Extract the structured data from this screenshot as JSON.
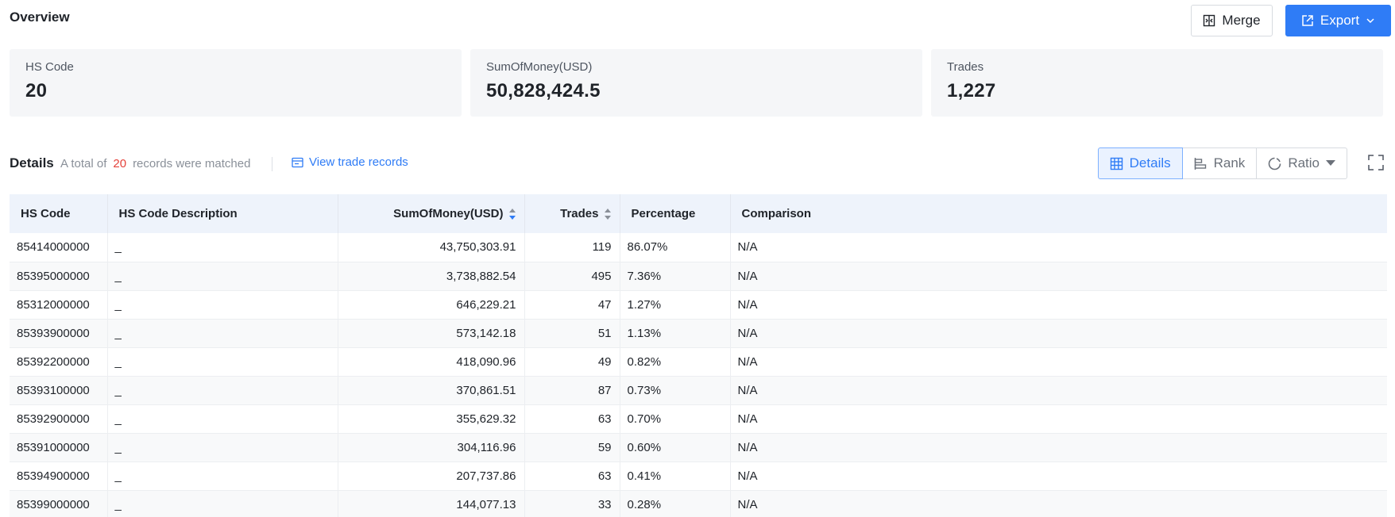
{
  "header": {
    "title": "Overview",
    "merge_label": "Merge",
    "export_label": "Export"
  },
  "cards": [
    {
      "label": "HS Code",
      "value": "20"
    },
    {
      "label": "SumOfMoney(USD)",
      "value": "50,828,424.5"
    },
    {
      "label": "Trades",
      "value": "1,227"
    }
  ],
  "details": {
    "title": "Details",
    "prefix": "A total of",
    "count": "20",
    "suffix": "records were matched",
    "view_link": "View trade records",
    "switch": {
      "details": "Details",
      "rank": "Rank",
      "ratio": "Ratio"
    }
  },
  "table": {
    "columns": [
      "HS Code",
      "HS Code Description",
      "SumOfMoney(USD)",
      "Trades",
      "Percentage",
      "Comparison"
    ],
    "rows": [
      [
        "85414000000",
        "_",
        "43,750,303.91",
        "119",
        "86.07%",
        "N/A"
      ],
      [
        "85395000000",
        "_",
        "3,738,882.54",
        "495",
        "7.36%",
        "N/A"
      ],
      [
        "85312000000",
        "_",
        "646,229.21",
        "47",
        "1.27%",
        "N/A"
      ],
      [
        "85393900000",
        "_",
        "573,142.18",
        "51",
        "1.13%",
        "N/A"
      ],
      [
        "85392200000",
        "_",
        "418,090.96",
        "49",
        "0.82%",
        "N/A"
      ],
      [
        "85393100000",
        "_",
        "370,861.51",
        "87",
        "0.73%",
        "N/A"
      ],
      [
        "85392900000",
        "_",
        "355,629.32",
        "63",
        "0.70%",
        "N/A"
      ],
      [
        "85391000000",
        "_",
        "304,116.96",
        "59",
        "0.60%",
        "N/A"
      ],
      [
        "85394900000",
        "_",
        "207,737.86",
        "63",
        "0.41%",
        "N/A"
      ],
      [
        "85399000000",
        "_",
        "144,077.13",
        "33",
        "0.28%",
        "N/A"
      ]
    ]
  },
  "colors": {
    "accent": "#2f7cf6",
    "count": "#e5413a"
  },
  "icons": [
    "merge-icon",
    "export-icon",
    "chevron-down-icon",
    "records-icon",
    "table-icon",
    "rank-icon",
    "ratio-icon",
    "caret-down-icon",
    "fullscreen-icon",
    "sort-icon"
  ]
}
